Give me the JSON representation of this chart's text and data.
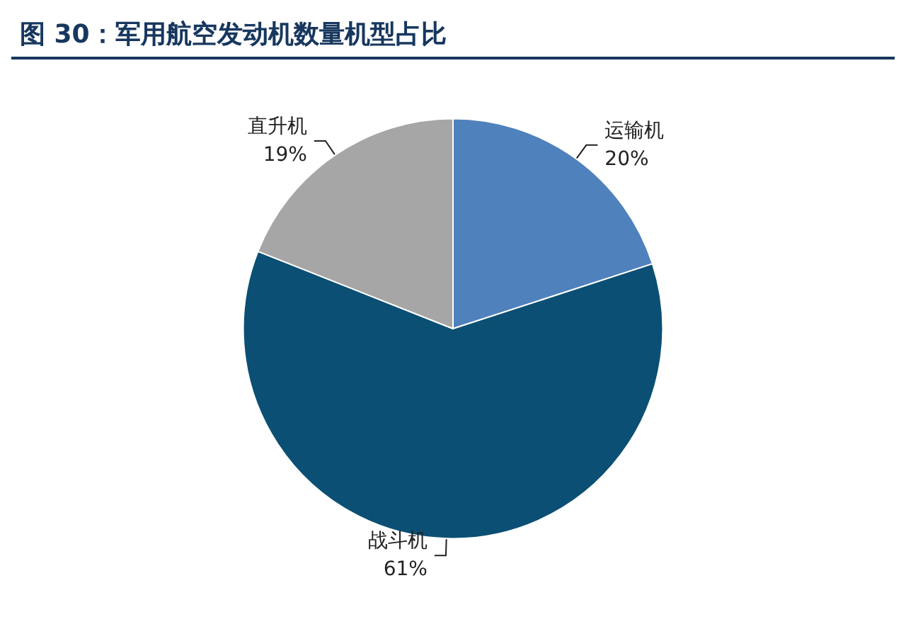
{
  "chart_data": {
    "type": "pie",
    "title": "图 30：军用航空发动机数量机型占比",
    "categories": [
      "运输机",
      "战斗机",
      "直升机"
    ],
    "values": [
      20,
      61,
      19
    ],
    "value_labels": [
      "20%",
      "61%",
      "19%"
    ],
    "colors": [
      "#4f81bd",
      "#0b4f74",
      "#a6a6a6"
    ],
    "legend": false
  }
}
